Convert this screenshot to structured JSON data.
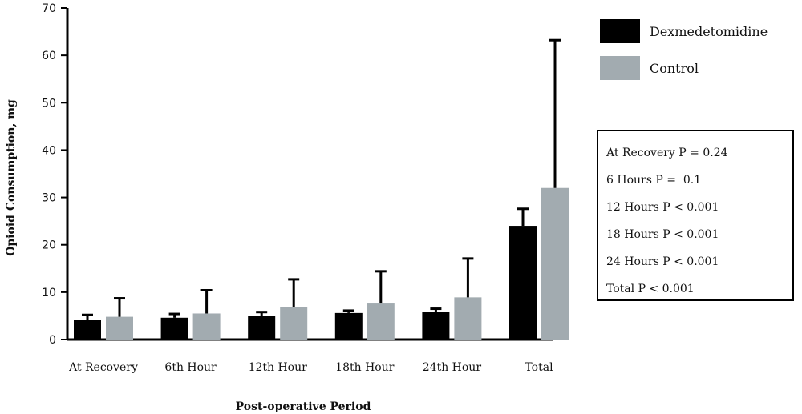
{
  "chart_data": {
    "type": "bar",
    "xlabel": "Post-operative Period",
    "ylabel": "Opioid Consumption, mg",
    "ylim": [
      0,
      70
    ],
    "yticks": [
      0,
      10,
      20,
      30,
      40,
      50,
      60,
      70
    ],
    "categories": [
      "At Recovery",
      "6th Hour",
      "12th Hour",
      "18th Hour",
      "24th Hour",
      "Total"
    ],
    "series": [
      {
        "name": "Dexmedetomidine",
        "color": "#000000",
        "values": [
          4.2,
          4.6,
          5.0,
          5.6,
          5.9,
          24.0
        ],
        "error": [
          1.0,
          0.8,
          0.8,
          0.5,
          0.6,
          3.6
        ]
      },
      {
        "name": "Control",
        "color": "#a2abb0",
        "values": [
          4.8,
          5.5,
          6.8,
          7.6,
          8.9,
          32.0
        ],
        "error": [
          3.9,
          4.9,
          5.9,
          6.8,
          8.2,
          31.2
        ]
      }
    ],
    "grid": false,
    "legend": "top-right",
    "annotations": [
      "At Recovery P = 0.24",
      "6 Hours P =  0.1",
      "12 Hours P < 0.001",
      "18 Hours P < 0.001",
      "24 Hours P < 0.001",
      "Total P < 0.001"
    ]
  }
}
